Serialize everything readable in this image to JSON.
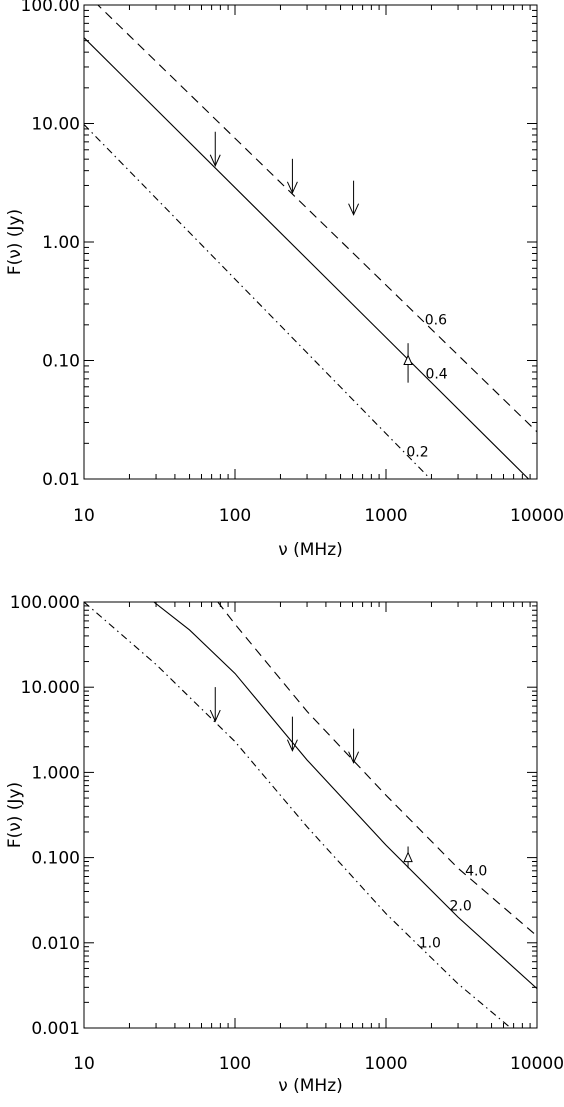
{
  "chart_data": [
    {
      "type": "line",
      "xlabel": "ν (MHz)",
      "ylabel": "F(ν) (Jy)",
      "xscale": "log",
      "yscale": "log",
      "xlim": [
        10,
        10000
      ],
      "ylim": [
        0.01,
        100
      ],
      "x_ticks": [
        "10",
        "100",
        "1000",
        "10000"
      ],
      "y_ticks": [
        "0.01",
        "0.10",
        "1.00",
        "10.00",
        "100.00"
      ],
      "grid": false,
      "series": [
        {
          "name": "0.6",
          "style": "dashed",
          "x": [
            10,
            10000
          ],
          "y": [
            130,
            0.025
          ]
        },
        {
          "name": "0.4",
          "style": "solid",
          "x": [
            10,
            10000
          ],
          "y": [
            53,
            0.0085
          ]
        },
        {
          "name": "0.2",
          "style": "dashdot",
          "x": [
            10,
            10000
          ],
          "y": [
            9.8,
            0.0012
          ]
        }
      ],
      "upper_limits": [
        {
          "x": 74,
          "y": 4.4
        },
        {
          "x": 240,
          "y": 2.6
        },
        {
          "x": 610,
          "y": 1.7
        }
      ],
      "detections": [
        {
          "x": 1400,
          "y": 0.1,
          "y_err": [
            0.065,
            0.14
          ]
        }
      ]
    },
    {
      "type": "line",
      "xlabel": "ν (MHz)",
      "ylabel": "F(ν) (Jy)",
      "xscale": "log",
      "yscale": "log",
      "xlim": [
        10,
        10000
      ],
      "ylim": [
        0.001,
        100
      ],
      "x_ticks": [
        "10",
        "100",
        "1000",
        "10000"
      ],
      "y_ticks": [
        "0.001",
        "0.010",
        "0.100",
        "1.000",
        "10.000",
        "100.000"
      ],
      "grid": false,
      "series": [
        {
          "name": "4.0",
          "style": "dashed",
          "x": [
            77,
            100,
            300,
            1000,
            3000,
            10000
          ],
          "y": [
            100,
            55,
            5.2,
            0.54,
            0.075,
            0.012
          ]
        },
        {
          "name": "2.0",
          "style": "solid",
          "x": [
            29,
            50,
            100,
            300,
            1000,
            3000,
            10000
          ],
          "y": [
            100,
            47,
            14.5,
            1.4,
            0.14,
            0.02,
            0.0029
          ]
        },
        {
          "name": "1.0",
          "style": "dashdot",
          "x": [
            10,
            30,
            100,
            300,
            1000,
            3000,
            6700
          ],
          "y": [
            100,
            18.5,
            2.3,
            0.23,
            0.022,
            0.0033,
            0.001
          ]
        }
      ],
      "upper_limits": [
        {
          "x": 74,
          "y": 4.0
        },
        {
          "x": 240,
          "y": 1.8
        },
        {
          "x": 610,
          "y": 1.3
        }
      ],
      "detections": [
        {
          "x": 1400,
          "y": 0.1,
          "y_err": [
            0.075,
            0.135
          ]
        }
      ]
    }
  ]
}
